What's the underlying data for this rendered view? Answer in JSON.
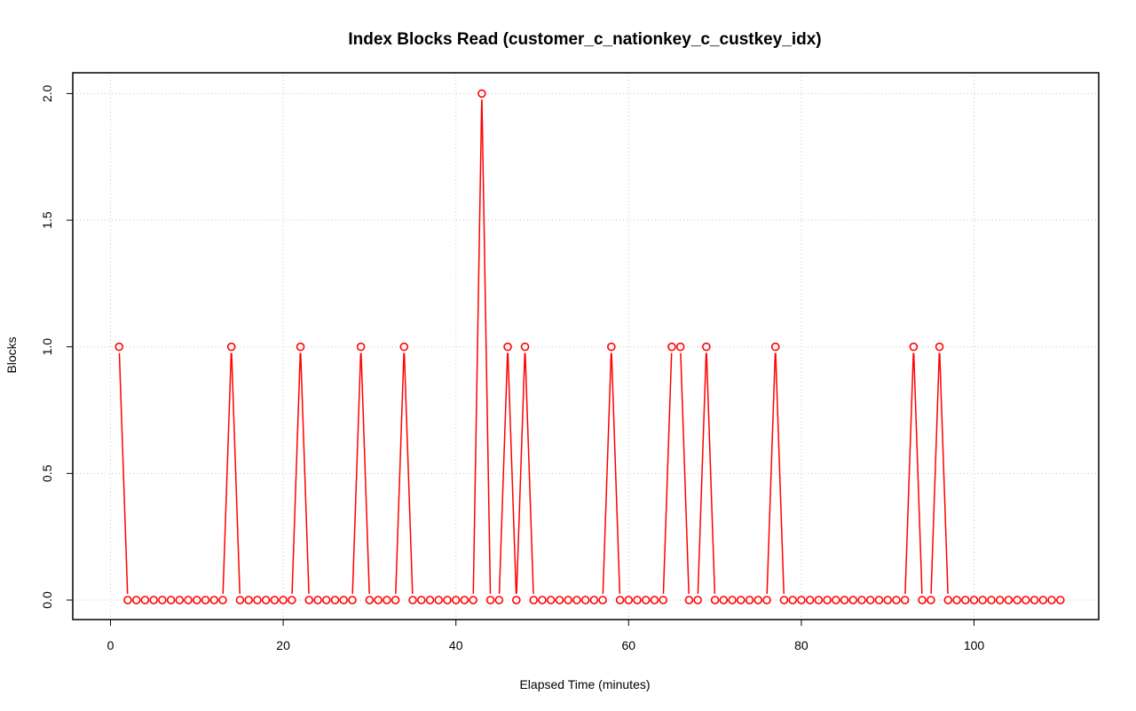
{
  "chart_data": {
    "type": "line",
    "title": "Index Blocks Read (customer_c_nationkey_c_custkey_idx)",
    "xlabel": "Elapsed Time (minutes)",
    "ylabel": "Blocks",
    "xlim": [
      1,
      110
    ],
    "ylim": [
      0,
      2
    ],
    "x_ticks": [
      0,
      20,
      40,
      60,
      80,
      100
    ],
    "x_tick_labels": [
      "0",
      "20",
      "40",
      "60",
      "80",
      "100"
    ],
    "y_ticks": [
      0,
      0.5,
      1,
      1.5,
      2
    ],
    "y_tick_labels": [
      "0.0",
      "0.5",
      "1.0",
      "1.5",
      "2.0"
    ],
    "grid": true,
    "series": [
      {
        "color": "#ff0000",
        "marker": "open-circle",
        "x": [
          1,
          2,
          3,
          4,
          5,
          6,
          7,
          8,
          9,
          10,
          11,
          12,
          13,
          14,
          15,
          16,
          17,
          18,
          19,
          20,
          21,
          22,
          23,
          24,
          25,
          26,
          27,
          28,
          29,
          30,
          31,
          32,
          33,
          34,
          35,
          36,
          37,
          38,
          39,
          40,
          41,
          42,
          43,
          44,
          45,
          46,
          47,
          48,
          49,
          50,
          51,
          52,
          53,
          54,
          55,
          56,
          57,
          58,
          59,
          60,
          61,
          62,
          63,
          64,
          65,
          66,
          67,
          68,
          69,
          70,
          71,
          72,
          73,
          74,
          75,
          76,
          77,
          78,
          79,
          80,
          81,
          82,
          83,
          84,
          85,
          86,
          87,
          88,
          89,
          90,
          91,
          92,
          93,
          94,
          95,
          96,
          97,
          98,
          99,
          100,
          101,
          102,
          103,
          104,
          105,
          106,
          107,
          108,
          109,
          110
        ],
        "y": [
          1,
          0,
          0,
          0,
          0,
          0,
          0,
          0,
          0,
          0,
          0,
          0,
          0,
          1,
          0,
          0,
          0,
          0,
          0,
          0,
          0,
          1,
          0,
          0,
          0,
          0,
          0,
          0,
          1,
          0,
          0,
          0,
          0,
          1,
          0,
          0,
          0,
          0,
          0,
          0,
          0,
          0,
          2,
          0,
          0,
          1,
          0,
          1,
          0,
          0,
          0,
          0,
          0,
          0,
          0,
          0,
          0,
          1,
          0,
          0,
          0,
          0,
          0,
          0,
          1,
          1,
          0,
          0,
          1,
          0,
          0,
          0,
          0,
          0,
          0,
          0,
          1,
          0,
          0,
          0,
          0,
          0,
          0,
          0,
          0,
          0,
          0,
          0,
          0,
          0,
          0,
          0,
          1,
          0,
          0,
          1,
          0,
          0,
          0,
          0,
          0,
          0,
          0,
          0,
          0,
          0,
          0,
          0,
          0,
          0
        ]
      }
    ]
  }
}
